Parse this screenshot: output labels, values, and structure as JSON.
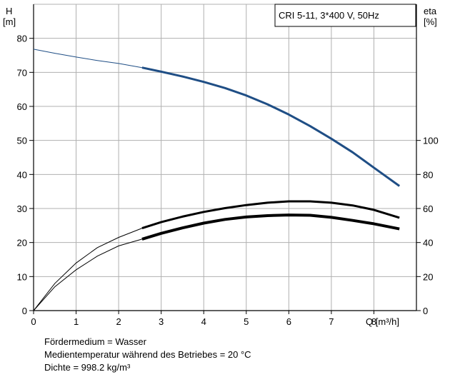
{
  "chart_data": {
    "type": "line",
    "title": "CRI 5-11, 3*400 V, 50Hz",
    "x_axis": {
      "label": "Q [m³/h]",
      "range": [
        0,
        9
      ],
      "ticks": [
        0,
        1,
        2,
        3,
        4,
        5,
        6,
        7,
        8
      ]
    },
    "y_left": {
      "label_top": "H",
      "label_unit": "[m]",
      "range": [
        0,
        90
      ],
      "ticks": [
        0,
        10,
        20,
        30,
        40,
        50,
        60,
        70,
        80
      ]
    },
    "y_right": {
      "label_top": "eta",
      "label_unit": "[%]",
      "range": [
        0,
        180
      ],
      "ticks": [
        0,
        20,
        40,
        60,
        80,
        100
      ]
    },
    "grid": true,
    "series": [
      {
        "axis": "left",
        "color": "#1f4e85",
        "thin_until_x": 2.55,
        "x": [
          0,
          0.5,
          1,
          1.5,
          2,
          2.55,
          3,
          3.5,
          4,
          4.5,
          5,
          5.5,
          6,
          6.5,
          7,
          7.5,
          8,
          8.6
        ],
        "y": [
          76.8,
          75.6,
          74.5,
          73.5,
          72.6,
          71.4,
          70.2,
          68.8,
          67.2,
          65.4,
          63.2,
          60.6,
          57.6,
          54.2,
          50.5,
          46.5,
          42.0,
          36.6
        ]
      },
      {
        "axis": "right",
        "color": "#000000",
        "thin_until_x": 2.55,
        "x": [
          0,
          0.5,
          1,
          1.5,
          2,
          2.55,
          3,
          3.5,
          4,
          4.5,
          5,
          5.5,
          6,
          6.5,
          7,
          7.5,
          8,
          8.6
        ],
        "y": [
          0,
          16,
          28,
          37,
          43,
          48.4,
          52,
          55.2,
          58,
          60.2,
          62,
          63.4,
          64.2,
          64.2,
          63.4,
          61.8,
          59.2,
          54.6
        ]
      },
      {
        "axis": "right",
        "color": "#000000",
        "thin_until_x": 2.55,
        "x": [
          0,
          0.5,
          1,
          1.5,
          2,
          2.55,
          3,
          3.5,
          4,
          4.5,
          5,
          5.5,
          6,
          6.5,
          7,
          7.5,
          8,
          8.6
        ],
        "y": [
          0,
          14,
          24,
          32,
          38,
          42,
          45.4,
          48.6,
          51.4,
          53.6,
          55,
          55.8,
          56.2,
          56,
          54.8,
          53,
          51,
          48
        ]
      }
    ]
  },
  "notes": [
    "Fördermedium = Wasser",
    "Medientemperatur während des Betriebes = 20 °C",
    "Dichte = 998.2 kg/m³"
  ]
}
